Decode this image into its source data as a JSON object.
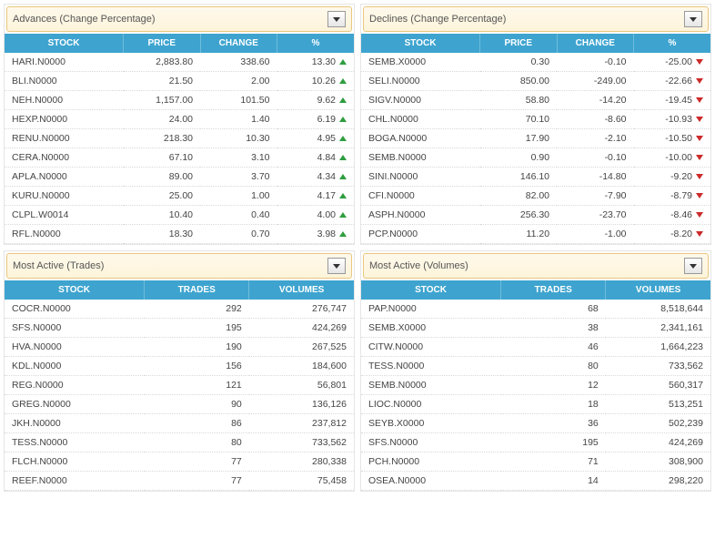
{
  "panels": {
    "advances": {
      "title": "Advances (Change Percentage)",
      "columns": [
        "STOCK",
        "PRICE",
        "CHANGE",
        "%"
      ],
      "rows": [
        {
          "stock": "HARI.N0000",
          "price": "2,883.80",
          "change": "338.60",
          "pct": "13.30",
          "dir": "up"
        },
        {
          "stock": "BLI.N0000",
          "price": "21.50",
          "change": "2.00",
          "pct": "10.26",
          "dir": "up"
        },
        {
          "stock": "NEH.N0000",
          "price": "1,157.00",
          "change": "101.50",
          "pct": "9.62",
          "dir": "up"
        },
        {
          "stock": "HEXP.N0000",
          "price": "24.00",
          "change": "1.40",
          "pct": "6.19",
          "dir": "up"
        },
        {
          "stock": "RENU.N0000",
          "price": "218.30",
          "change": "10.30",
          "pct": "4.95",
          "dir": "up"
        },
        {
          "stock": "CERA.N0000",
          "price": "67.10",
          "change": "3.10",
          "pct": "4.84",
          "dir": "up"
        },
        {
          "stock": "APLA.N0000",
          "price": "89.00",
          "change": "3.70",
          "pct": "4.34",
          "dir": "up"
        },
        {
          "stock": "KURU.N0000",
          "price": "25.00",
          "change": "1.00",
          "pct": "4.17",
          "dir": "up"
        },
        {
          "stock": "CLPL.W0014",
          "price": "10.40",
          "change": "0.40",
          "pct": "4.00",
          "dir": "up"
        },
        {
          "stock": "RFL.N0000",
          "price": "18.30",
          "change": "0.70",
          "pct": "3.98",
          "dir": "up"
        }
      ]
    },
    "declines": {
      "title": "Declines (Change Percentage)",
      "columns": [
        "STOCK",
        "PRICE",
        "CHANGE",
        "%"
      ],
      "rows": [
        {
          "stock": "SEMB.X0000",
          "price": "0.30",
          "change": "-0.10",
          "pct": "-25.00",
          "dir": "down"
        },
        {
          "stock": "SELI.N0000",
          "price": "850.00",
          "change": "-249.00",
          "pct": "-22.66",
          "dir": "down"
        },
        {
          "stock": "SIGV.N0000",
          "price": "58.80",
          "change": "-14.20",
          "pct": "-19.45",
          "dir": "down"
        },
        {
          "stock": "CHL.N0000",
          "price": "70.10",
          "change": "-8.60",
          "pct": "-10.93",
          "dir": "down"
        },
        {
          "stock": "BOGA.N0000",
          "price": "17.90",
          "change": "-2.10",
          "pct": "-10.50",
          "dir": "down"
        },
        {
          "stock": "SEMB.N0000",
          "price": "0.90",
          "change": "-0.10",
          "pct": "-10.00",
          "dir": "down"
        },
        {
          "stock": "SINI.N0000",
          "price": "146.10",
          "change": "-14.80",
          "pct": "-9.20",
          "dir": "down"
        },
        {
          "stock": "CFI.N0000",
          "price": "82.00",
          "change": "-7.90",
          "pct": "-8.79",
          "dir": "down"
        },
        {
          "stock": "ASPH.N0000",
          "price": "256.30",
          "change": "-23.70",
          "pct": "-8.46",
          "dir": "down"
        },
        {
          "stock": "PCP.N0000",
          "price": "11.20",
          "change": "-1.00",
          "pct": "-8.20",
          "dir": "down"
        }
      ]
    },
    "trades": {
      "title": "Most Active (Trades)",
      "columns": [
        "STOCK",
        "TRADES",
        "VOLUMES"
      ],
      "rows": [
        {
          "stock": "COCR.N0000",
          "trades": "292",
          "volumes": "276,747"
        },
        {
          "stock": "SFS.N0000",
          "trades": "195",
          "volumes": "424,269"
        },
        {
          "stock": "HVA.N0000",
          "trades": "190",
          "volumes": "267,525"
        },
        {
          "stock": "KDL.N0000",
          "trades": "156",
          "volumes": "184,600"
        },
        {
          "stock": "REG.N0000",
          "trades": "121",
          "volumes": "56,801"
        },
        {
          "stock": "GREG.N0000",
          "trades": "90",
          "volumes": "136,126"
        },
        {
          "stock": "JKH.N0000",
          "trades": "86",
          "volumes": "237,812"
        },
        {
          "stock": "TESS.N0000",
          "trades": "80",
          "volumes": "733,562"
        },
        {
          "stock": "FLCH.N0000",
          "trades": "77",
          "volumes": "280,338"
        },
        {
          "stock": "REEF.N0000",
          "trades": "77",
          "volumes": "75,458"
        }
      ]
    },
    "volumes": {
      "title": "Most Active (Volumes)",
      "columns": [
        "STOCK",
        "TRADES",
        "VOLUMES"
      ],
      "rows": [
        {
          "stock": "PAP.N0000",
          "trades": "68",
          "volumes": "8,518,644"
        },
        {
          "stock": "SEMB.X0000",
          "trades": "38",
          "volumes": "2,341,161"
        },
        {
          "stock": "CITW.N0000",
          "trades": "46",
          "volumes": "1,664,223"
        },
        {
          "stock": "TESS.N0000",
          "trades": "80",
          "volumes": "733,562"
        },
        {
          "stock": "SEMB.N0000",
          "trades": "12",
          "volumes": "560,317"
        },
        {
          "stock": "LIOC.N0000",
          "trades": "18",
          "volumes": "513,251"
        },
        {
          "stock": "SEYB.X0000",
          "trades": "36",
          "volumes": "502,239"
        },
        {
          "stock": "SFS.N0000",
          "trades": "195",
          "volumes": "424,269"
        },
        {
          "stock": "PCH.N0000",
          "trades": "71",
          "volumes": "308,900"
        },
        {
          "stock": "OSEA.N0000",
          "trades": "14",
          "volumes": "298,220"
        }
      ]
    }
  }
}
